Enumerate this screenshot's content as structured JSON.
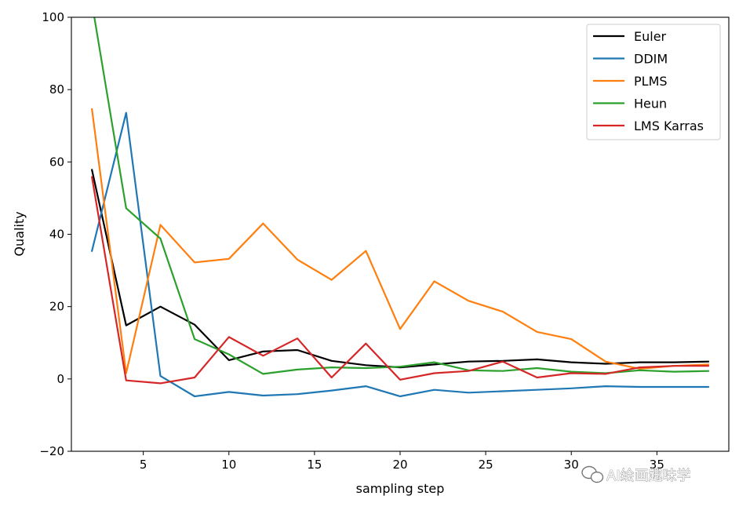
{
  "chart_data": {
    "type": "line",
    "title": "",
    "xlabel": "sampling step",
    "ylabel": "Quality",
    "xlim": [
      0.8,
      39.2
    ],
    "ylim": [
      -20,
      100
    ],
    "xticks": [
      5,
      10,
      15,
      20,
      25,
      30,
      35
    ],
    "yticks": [
      -20,
      0,
      20,
      40,
      60,
      80,
      100
    ],
    "grid": false,
    "legend_position": "top-right",
    "x": [
      2,
      4,
      6,
      8,
      10,
      12,
      14,
      16,
      18,
      20,
      22,
      24,
      26,
      28,
      30,
      32,
      34,
      36,
      38
    ],
    "series": [
      {
        "name": "Euler",
        "color": "#000000",
        "values": [
          57.8,
          14.8,
          20.0,
          15.0,
          5.2,
          7.6,
          8.0,
          5.0,
          3.8,
          3.2,
          4.0,
          4.8,
          5.0,
          5.4,
          4.6,
          4.2,
          4.6,
          4.6,
          4.8
        ]
      },
      {
        "name": "DDIM",
        "color": "#1f77b4",
        "values": [
          35.4,
          73.6,
          0.8,
          -4.8,
          -3.6,
          -4.6,
          -4.2,
          -3.2,
          -2.0,
          -4.8,
          -3.0,
          -3.8,
          -3.4,
          -3.0,
          -2.6,
          -2.0,
          -2.2,
          -2.2,
          -2.2
        ]
      },
      {
        "name": "PLMS",
        "color": "#ff7f0e",
        "values": [
          74.6,
          1.6,
          42.6,
          32.2,
          33.2,
          43.0,
          33.0,
          27.4,
          35.4,
          13.8,
          27.0,
          21.6,
          18.6,
          13.0,
          11.0,
          4.8,
          2.8,
          3.6,
          4.0
        ]
      },
      {
        "name": "Heun",
        "color": "#2ca02c",
        "values": [
          104.0,
          47.2,
          38.8,
          11.0,
          6.8,
          1.4,
          2.6,
          3.2,
          3.0,
          3.4,
          4.6,
          2.4,
          2.2,
          3.0,
          2.0,
          1.6,
          2.4,
          2.0,
          2.2
        ]
      },
      {
        "name": "LMS Karras",
        "color": "#d62728",
        "values": [
          55.8,
          -0.4,
          -1.2,
          0.4,
          11.6,
          6.4,
          11.2,
          0.4,
          9.8,
          -0.2,
          1.6,
          2.2,
          4.8,
          0.4,
          1.6,
          1.4,
          3.2,
          3.6,
          3.6
        ]
      }
    ]
  },
  "watermark": {
    "text": "AI绘画趣味学",
    "icon": "wechat-icon"
  }
}
